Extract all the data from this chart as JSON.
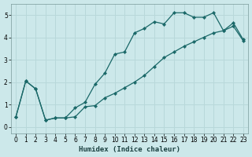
{
  "xlabel": "Humidex (Indice chaleur)",
  "bg_color": "#cce8ea",
  "grid_color": "#b8d8da",
  "line_color": "#1a6868",
  "xlim": [
    -0.5,
    23.5
  ],
  "ylim": [
    -0.3,
    5.5
  ],
  "xticks": [
    0,
    1,
    2,
    3,
    4,
    5,
    6,
    7,
    8,
    9,
    10,
    11,
    12,
    13,
    14,
    15,
    16,
    17,
    18,
    19,
    20,
    21,
    22,
    23
  ],
  "yticks": [
    0,
    1,
    2,
    3,
    4,
    5
  ],
  "line1_x": [
    0,
    1,
    2,
    3,
    4,
    5,
    6,
    7,
    8,
    9,
    10,
    11,
    12,
    13,
    14,
    15,
    16,
    17,
    18,
    19,
    20,
    21,
    22,
    23
  ],
  "line1_y": [
    0.45,
    2.05,
    1.7,
    0.3,
    0.4,
    0.4,
    0.85,
    1.1,
    1.9,
    2.4,
    3.25,
    3.35,
    4.2,
    4.4,
    4.7,
    4.6,
    5.1,
    5.1,
    4.9,
    4.9,
    5.1,
    4.3,
    4.65,
    3.9
  ],
  "line2_x": [
    0,
    1,
    2,
    3,
    4,
    5,
    6,
    7,
    8,
    9,
    10,
    11,
    12,
    13,
    14,
    15,
    16,
    17,
    18,
    19,
    20,
    21,
    22,
    23
  ],
  "line2_y": [
    0.45,
    2.05,
    1.7,
    0.3,
    0.4,
    0.4,
    0.45,
    0.9,
    0.95,
    1.3,
    1.5,
    1.75,
    2.0,
    2.3,
    2.7,
    3.1,
    3.35,
    3.6,
    3.8,
    4.0,
    4.2,
    4.3,
    4.5,
    3.85
  ]
}
